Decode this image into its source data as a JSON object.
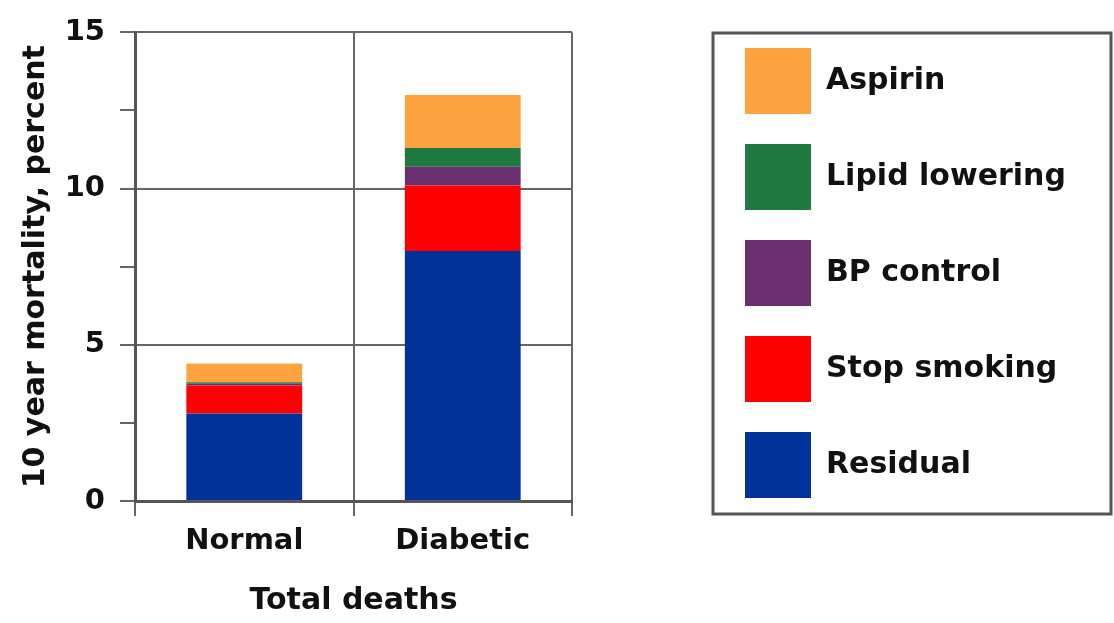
{
  "chart_data": {
    "type": "bar",
    "stacked": true,
    "categories": [
      "Normal",
      "Diabetic"
    ],
    "xlabel": "Total deaths",
    "ylabel": "10 year mortality, percent",
    "series": [
      {
        "name": "Residual",
        "color": "#003399",
        "values": [
          2.8,
          8.0
        ]
      },
      {
        "name": "Stop smoking",
        "color": "#fe0000",
        "values": [
          0.9,
          2.1
        ]
      },
      {
        "name": "BP control",
        "color": "#6b3070",
        "values": [
          0.05,
          0.6
        ]
      },
      {
        "name": "Lipid lowering",
        "color": "#1f7a3f",
        "values": [
          0.05,
          0.6
        ]
      },
      {
        "name": "Aspirin",
        "color": "#fda33f",
        "values": [
          0.6,
          1.7
        ]
      }
    ],
    "ylim": [
      0,
      15
    ],
    "yticks": [
      0,
      {
        "value": 2.5,
        "label": null
      },
      5,
      {
        "value": 7.5,
        "label": null
      },
      10,
      {
        "value": 12.5,
        "label": null
      },
      15
    ],
    "grid": true,
    "legend": "right"
  }
}
